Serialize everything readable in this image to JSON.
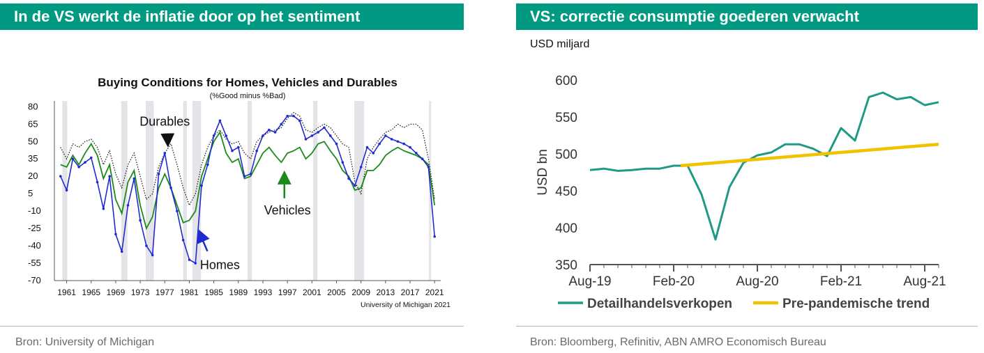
{
  "panels": {
    "left": {
      "header_title": "In de VS werkt de inflatie door op het sentiment",
      "source": "Bron: University of Michigan"
    },
    "right": {
      "header_title": "VS: correctie consumptie goederen verwacht",
      "unit_label": "USD miljard",
      "source": "Bron: Bloomberg, Refinitiv, ABN AMRO Economisch Bureau"
    }
  },
  "colors": {
    "header_bg": "#009a83",
    "homes": "#1f2bd0",
    "vehicles": "#1a8a1a",
    "durables": "#111111",
    "retail": "#1e9a86",
    "trend": "#f2c200",
    "recession": "#e3e3e8"
  },
  "chart_data": [
    {
      "type": "line",
      "title": "Buying Conditions for Homes, Vehicles and Durables",
      "subtitle": "(%Good minus %Bad)",
      "credit": "University of Michigan 2021",
      "xlim": [
        1959,
        2022
      ],
      "ylim": [
        -70,
        85
      ],
      "yticks": [
        80,
        65,
        50,
        35,
        20,
        5,
        -10,
        -25,
        -40,
        -55,
        -70
      ],
      "ytick_labels": [
        "80",
        "65",
        "50",
        "35",
        "20",
        "5",
        "-10",
        "-25",
        "-40",
        "-55",
        "-70"
      ],
      "xticks": [
        1961,
        1965,
        1969,
        1973,
        1977,
        1981,
        1985,
        1989,
        1993,
        1997,
        2001,
        2005,
        2009,
        2013,
        2017,
        2021
      ],
      "xtick_labels": [
        "1961",
        "1965",
        "1969",
        "1973",
        "1977",
        "1981",
        "1985",
        "1989",
        "1993",
        "1997",
        "2001",
        "2005",
        "2009",
        "2013",
        "2017",
        "2021"
      ],
      "recessions": [
        [
          1960.3,
          1961.1
        ],
        [
          1969.9,
          1970.9
        ],
        [
          1973.9,
          1975.2
        ],
        [
          1980.0,
          1980.6
        ],
        [
          1981.5,
          1982.9
        ],
        [
          1990.5,
          1991.2
        ],
        [
          2001.2,
          2001.9
        ],
        [
          2007.9,
          2009.5
        ],
        [
          2020.1,
          2020.4
        ]
      ],
      "annotations": [
        {
          "text": "Durables",
          "x": 1977,
          "y": 60,
          "arrow_to": [
            1977.5,
            48
          ]
        },
        {
          "text": "Vehicles",
          "x": 1997,
          "y": -5,
          "arrow_to": [
            1996.5,
            22
          ]
        },
        {
          "text": "Homes",
          "x": 1986,
          "y": -53,
          "arrow_to": [
            1982.6,
            -28
          ]
        }
      ],
      "series": [
        {
          "name": "Homes",
          "x": [
            1960,
            1961,
            1962,
            1963,
            1964,
            1965,
            1966,
            1967,
            1968,
            1969,
            1970,
            1971,
            1972,
            1973,
            1974,
            1975,
            1976,
            1977,
            1978,
            1979,
            1980,
            1981,
            1982,
            1983,
            1984,
            1985,
            1986,
            1987,
            1988,
            1989,
            1990,
            1991,
            1992,
            1993,
            1994,
            1995,
            1996,
            1997,
            1998,
            1999,
            2000,
            2001,
            2002,
            2003,
            2004,
            2005,
            2006,
            2007,
            2008,
            2009,
            2010,
            2011,
            2012,
            2013,
            2014,
            2015,
            2016,
            2017,
            2018,
            2019,
            2020,
            2021
          ],
          "y": [
            20,
            8,
            35,
            28,
            32,
            36,
            15,
            -8,
            20,
            -30,
            -45,
            -5,
            18,
            -18,
            -40,
            -48,
            22,
            40,
            10,
            -10,
            -35,
            -52,
            -55,
            12,
            30,
            55,
            68,
            55,
            42,
            45,
            20,
            22,
            42,
            55,
            60,
            58,
            65,
            72,
            72,
            68,
            52,
            55,
            58,
            62,
            55,
            48,
            32,
            18,
            12,
            28,
            45,
            40,
            48,
            55,
            52,
            50,
            48,
            45,
            40,
            35,
            28,
            -32
          ]
        },
        {
          "name": "Vehicles",
          "x": [
            1960,
            1961,
            1962,
            1963,
            1964,
            1965,
            1966,
            1967,
            1968,
            1969,
            1970,
            1971,
            1972,
            1973,
            1974,
            1975,
            1976,
            1977,
            1978,
            1979,
            1980,
            1981,
            1982,
            1983,
            1984,
            1985,
            1986,
            1987,
            1988,
            1989,
            1990,
            1991,
            1992,
            1993,
            1994,
            1995,
            1996,
            1997,
            1998,
            1999,
            2000,
            2001,
            2002,
            2003,
            2004,
            2005,
            2006,
            2007,
            2008,
            2009,
            2010,
            2011,
            2012,
            2013,
            2014,
            2015,
            2016,
            2017,
            2018,
            2019,
            2020,
            2021
          ],
          "y": [
            30,
            28,
            38,
            30,
            40,
            48,
            38,
            18,
            30,
            0,
            -12,
            15,
            25,
            -5,
            -25,
            -15,
            10,
            22,
            10,
            -5,
            -20,
            -18,
            -10,
            20,
            35,
            50,
            58,
            40,
            32,
            35,
            18,
            20,
            30,
            40,
            45,
            38,
            32,
            40,
            42,
            45,
            35,
            40,
            48,
            50,
            42,
            35,
            25,
            20,
            8,
            10,
            25,
            25,
            30,
            38,
            42,
            45,
            42,
            40,
            38,
            35,
            30,
            -5
          ]
        },
        {
          "name": "Durables",
          "x": [
            1960,
            1961,
            1962,
            1963,
            1964,
            1965,
            1966,
            1967,
            1968,
            1969,
            1970,
            1971,
            1972,
            1973,
            1974,
            1975,
            1976,
            1977,
            1978,
            1979,
            1980,
            1981,
            1982,
            1983,
            1984,
            1985,
            1986,
            1987,
            1988,
            1989,
            1990,
            1991,
            1992,
            1993,
            1994,
            1995,
            1996,
            1997,
            1998,
            1999,
            2000,
            2001,
            2002,
            2003,
            2004,
            2005,
            2006,
            2007,
            2008,
            2009,
            2010,
            2011,
            2012,
            2013,
            2014,
            2015,
            2016,
            2017,
            2018,
            2019,
            2020,
            2021
          ],
          "y": [
            45,
            35,
            48,
            45,
            50,
            52,
            45,
            30,
            42,
            22,
            10,
            30,
            40,
            20,
            0,
            5,
            28,
            40,
            48,
            30,
            10,
            -5,
            5,
            30,
            45,
            55,
            60,
            52,
            48,
            50,
            40,
            35,
            50,
            55,
            58,
            60,
            62,
            70,
            75,
            72,
            60,
            58,
            62,
            65,
            62,
            55,
            48,
            45,
            15,
            5,
            35,
            45,
            52,
            58,
            60,
            65,
            62,
            65,
            65,
            60,
            35,
            0
          ]
        }
      ]
    },
    {
      "type": "line",
      "ylabel": "USD bn",
      "ylim": [
        350,
        600
      ],
      "yticks": [
        350,
        400,
        450,
        500,
        550,
        600
      ],
      "ytick_labels": [
        "350",
        "400",
        "450",
        "500",
        "550",
        "600"
      ],
      "xtick_labels": [
        "Aug-19",
        "Feb-20",
        "Aug-20",
        "Feb-21",
        "Aug-21"
      ],
      "xtick_index": [
        0,
        6,
        12,
        18,
        24
      ],
      "legend": [
        "Detailhandelsverkopen",
        "Pre-pandemische trend"
      ],
      "series": [
        {
          "name": "Detailhandelsverkopen",
          "x": [
            0,
            1,
            2,
            3,
            4,
            5,
            6,
            7,
            8,
            9,
            10,
            11,
            12,
            13,
            14,
            15,
            16,
            17,
            18,
            19,
            20,
            21,
            22,
            23,
            24,
            25
          ],
          "y": [
            478,
            480,
            477,
            478,
            480,
            480,
            484,
            484,
            445,
            384,
            455,
            488,
            498,
            502,
            513,
            513,
            507,
            497,
            535,
            518,
            577,
            583,
            574,
            577,
            566,
            570
          ]
        },
        {
          "name": "Pre-pandemische trend",
          "x": [
            6.5,
            25
          ],
          "y": [
            484,
            513
          ]
        }
      ]
    }
  ]
}
